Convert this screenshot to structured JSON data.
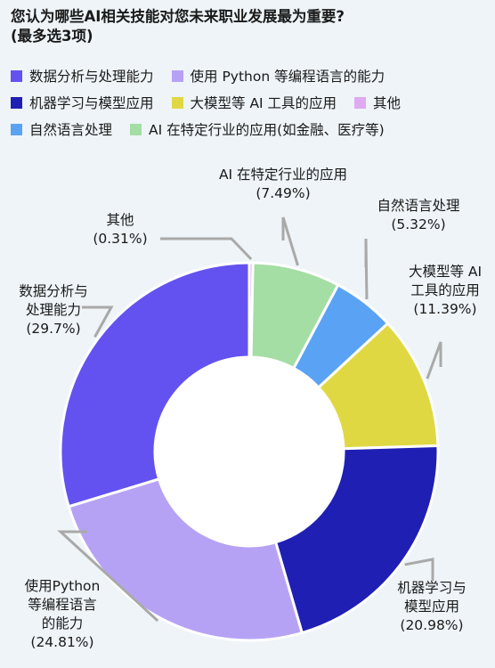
{
  "chart_data": {
    "type": "pie",
    "title_lines": [
      "您认为哪些AI相关技能对您未来职业发展最为重要?",
      "(最多选3项)"
    ],
    "legend_rows": [
      [
        0,
        1
      ],
      [
        2,
        3,
        4
      ],
      [
        5,
        6
      ]
    ],
    "series": [
      {
        "name": "数据分析与处理能力",
        "value": 29.7,
        "display": "29.7%",
        "color": "#6352f0",
        "label_lines": [
          "数据分析与",
          "处理能力",
          "(29.7%)"
        ]
      },
      {
        "name": "使用 Python 等编程语言的能力",
        "value": 24.81,
        "display": "24.81%",
        "color": "#b6a2f5",
        "label_lines": [
          "使用Python",
          "等编程语言",
          "的能力",
          "(24.81%)"
        ]
      },
      {
        "name": "机器学习与模型应用",
        "value": 20.98,
        "display": "20.98%",
        "color": "#1f1fb4",
        "label_lines": [
          "机器学习与",
          "模型应用",
          "(20.98%)"
        ]
      },
      {
        "name": "大模型等 AI 工具的应用",
        "value": 11.39,
        "display": "11.39%",
        "color": "#e0d843",
        "label_lines": [
          "大模型等 AI",
          "工具的应用",
          "(11.39%)"
        ]
      },
      {
        "name": "其他",
        "value": 0.31,
        "display": "0.31%",
        "color": "#dfaaf1",
        "label_lines": [
          "其他",
          "(0.31%)"
        ]
      },
      {
        "name": "自然语言处理",
        "value": 5.32,
        "display": "5.32%",
        "color": "#5aa3f4",
        "label_lines": [
          "自然语言处理",
          "(5.32%)"
        ]
      },
      {
        "name": "AI 在特定行业的应用(如金融、医疗等)",
        "value": 7.49,
        "display": "7.49%",
        "color": "#a4dea4",
        "label_lines": [
          "AI 在特定行业的应用",
          "(7.49%)"
        ]
      }
    ],
    "draw_order": [
      4,
      6,
      5,
      3,
      2,
      1,
      0
    ],
    "inner_radius_ratio": 0.5,
    "legend_position": "top"
  }
}
